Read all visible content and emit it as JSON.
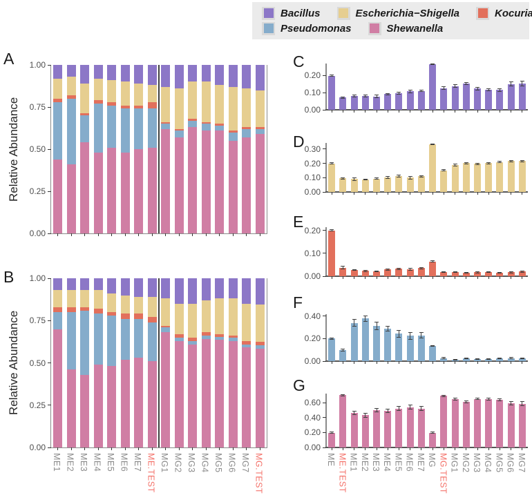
{
  "legend": {
    "rows": [
      [
        {
          "id": "bacillus",
          "label": "Bacillus",
          "color": "#8C77C7"
        },
        {
          "id": "escherichia",
          "label": "Escherichia−Shigella",
          "color": "#E6CE90"
        },
        {
          "id": "kocuria",
          "label": "Kocuria",
          "color": "#E2705C"
        }
      ],
      [
        {
          "id": "pseudomonas",
          "label": "Pseudomonas",
          "color": "#85ACCB"
        },
        {
          "id": "shewanella",
          "label": "Shewanella",
          "color": "#D07EA4"
        }
      ]
    ]
  },
  "x_axis": {
    "left_labels": [
      "ME1",
      "ME2",
      "ME3",
      "ME4",
      "ME5",
      "ME6",
      "ME7",
      "ME.TEST",
      "MG1",
      "MG2",
      "MG3",
      "MG4",
      "MG5",
      "MG6",
      "MG7",
      "MG.TEST"
    ],
    "right_labels": [
      "ME",
      "ME.TEST",
      "ME1",
      "ME2",
      "ME3",
      "ME4",
      "ME5",
      "ME6",
      "ME7",
      "MG",
      "MG.TEST",
      "MG1",
      "MG2",
      "MG3",
      "MG4",
      "MG5",
      "MG6",
      "MG7"
    ],
    "highlighted": [
      "ME.TEST",
      "MG.TEST"
    ],
    "highlight_color": "#F4736B",
    "normal_color": "#8C8C8C"
  },
  "chart_data": [
    {
      "id": "A",
      "letter": "A",
      "type": "stacked-bar",
      "ylabel": "Relative Abundance",
      "ylim": [
        0,
        1
      ],
      "ytick_values": [
        1.0,
        0.75,
        0.5,
        0.25,
        0.0
      ],
      "ytick_labels": [
        "1.00",
        "0.75",
        "0.50",
        "0.25",
        "0.00"
      ],
      "categories": [
        "ME1",
        "ME2",
        "ME3",
        "ME4",
        "ME5",
        "ME6",
        "ME7",
        "ME.TEST",
        "MG1",
        "MG2",
        "MG3",
        "MG4",
        "MG5",
        "MG6",
        "MG7",
        "MG.TEST"
      ],
      "series": [
        {
          "name": "Shewanella",
          "color": "#D07EA4",
          "values": [
            0.44,
            0.41,
            0.54,
            0.48,
            0.51,
            0.48,
            0.5,
            0.51,
            0.62,
            0.57,
            0.63,
            0.61,
            0.61,
            0.55,
            0.57,
            0.59
          ]
        },
        {
          "name": "Pseudomonas",
          "color": "#85ACCB",
          "values": [
            0.34,
            0.39,
            0.16,
            0.29,
            0.25,
            0.26,
            0.24,
            0.23,
            0.03,
            0.04,
            0.04,
            0.04,
            0.03,
            0.05,
            0.05,
            0.03
          ]
        },
        {
          "name": "Kocuria",
          "color": "#E2705C",
          "values": [
            0.02,
            0.02,
            0.015,
            0.02,
            0.02,
            0.02,
            0.02,
            0.04,
            0.01,
            0.01,
            0.01,
            0.01,
            0.01,
            0.01,
            0.01,
            0.01
          ]
        },
        {
          "name": "Escherichia−Shigella",
          "color": "#E6CE90",
          "values": [
            0.12,
            0.11,
            0.175,
            0.13,
            0.13,
            0.14,
            0.13,
            0.1,
            0.21,
            0.24,
            0.22,
            0.24,
            0.23,
            0.26,
            0.23,
            0.22
          ]
        },
        {
          "name": "Bacillus",
          "color": "#8C77C7",
          "values": [
            0.08,
            0.07,
            0.11,
            0.08,
            0.09,
            0.1,
            0.11,
            0.12,
            0.13,
            0.14,
            0.1,
            0.1,
            0.12,
            0.13,
            0.14,
            0.15
          ]
        }
      ]
    },
    {
      "id": "B",
      "letter": "B",
      "type": "stacked-bar",
      "ylabel": "Relative Abundance",
      "ylim": [
        0,
        1
      ],
      "ytick_values": [
        1.0,
        0.75,
        0.5,
        0.25,
        0.0
      ],
      "ytick_labels": [
        "1.00",
        "0.75",
        "0.50",
        "0.25",
        "0.00"
      ],
      "categories": [
        "ME1",
        "ME2",
        "ME3",
        "ME4",
        "ME5",
        "ME6",
        "ME7",
        "ME.TEST",
        "MG1",
        "MG2",
        "MG3",
        "MG4",
        "MG5",
        "MG6",
        "MG7",
        "MG.TEST"
      ],
      "series": [
        {
          "name": "Shewanella",
          "color": "#D07EA4",
          "values": [
            0.7,
            0.46,
            0.43,
            0.49,
            0.48,
            0.52,
            0.53,
            0.51,
            0.68,
            0.63,
            0.61,
            0.64,
            0.635,
            0.63,
            0.59,
            0.585
          ]
        },
        {
          "name": "Pseudomonas",
          "color": "#85ACCB",
          "values": [
            0.1,
            0.34,
            0.38,
            0.3,
            0.3,
            0.24,
            0.23,
            0.23,
            0.03,
            0.02,
            0.02,
            0.02,
            0.02,
            0.02,
            0.02,
            0.02
          ]
        },
        {
          "name": "Kocuria",
          "color": "#E2705C",
          "values": [
            0.03,
            0.03,
            0.02,
            0.03,
            0.02,
            0.03,
            0.03,
            0.03,
            0.01,
            0.02,
            0.02,
            0.02,
            0.015,
            0.01,
            0.02,
            0.02
          ]
        },
        {
          "name": "Escherichia−Shigella",
          "color": "#E6CE90",
          "values": [
            0.1,
            0.1,
            0.1,
            0.11,
            0.11,
            0.11,
            0.1,
            0.12,
            0.16,
            0.18,
            0.2,
            0.19,
            0.21,
            0.22,
            0.22,
            0.22
          ]
        },
        {
          "name": "Bacillus",
          "color": "#8C77C7",
          "values": [
            0.07,
            0.07,
            0.07,
            0.07,
            0.09,
            0.1,
            0.11,
            0.11,
            0.12,
            0.15,
            0.15,
            0.13,
            0.12,
            0.12,
            0.15,
            0.155
          ]
        }
      ]
    },
    {
      "id": "C",
      "letter": "C",
      "type": "bar",
      "taxon": "Bacillus",
      "color": "#8C77C7",
      "ylim": [
        0,
        0.268
      ],
      "ytick_values": [
        0.0,
        0.1,
        0.2
      ],
      "ytick_labels": [
        "0.00",
        "0.10",
        "0.20"
      ],
      "categories": [
        "ME",
        "ME.TEST",
        "ME1",
        "ME2",
        "ME3",
        "ME4",
        "ME5",
        "ME6",
        "ME7",
        "MG",
        "MG.TEST",
        "MG1",
        "MG2",
        "MG3",
        "MG4",
        "MG5",
        "MG6",
        "MG7"
      ],
      "values": [
        0.197,
        0.071,
        0.08,
        0.081,
        0.078,
        0.091,
        0.096,
        0.107,
        0.11,
        0.265,
        0.125,
        0.137,
        0.152,
        0.123,
        0.115,
        0.115,
        0.15,
        0.153
      ],
      "errors": [
        0.004,
        0.005,
        0.006,
        0.007,
        0.007,
        0.004,
        0.006,
        0.007,
        0.005,
        0.003,
        0.008,
        0.008,
        0.007,
        0.008,
        0.006,
        0.008,
        0.013,
        0.015
      ]
    },
    {
      "id": "D",
      "letter": "D",
      "type": "bar",
      "taxon": "Escherichia−Shigella",
      "color": "#E6CE90",
      "ylim": [
        0,
        0.343
      ],
      "ytick_values": [
        0.0,
        0.1,
        0.2,
        0.3
      ],
      "ytick_labels": [
        "0.00",
        "0.10",
        "0.20",
        "0.30"
      ],
      "categories": [
        "ME",
        "ME.TEST",
        "ME1",
        "ME2",
        "ME3",
        "ME4",
        "ME5",
        "ME6",
        "ME7",
        "MG",
        "MG.TEST",
        "MG1",
        "MG2",
        "MG3",
        "MG4",
        "MG5",
        "MG6",
        "MG7"
      ],
      "values": [
        0.2,
        0.095,
        0.091,
        0.086,
        0.093,
        0.1,
        0.11,
        0.101,
        0.11,
        0.335,
        0.152,
        0.19,
        0.201,
        0.197,
        0.202,
        0.21,
        0.215,
        0.215
      ],
      "errors": [
        0.004,
        0.004,
        0.009,
        0.003,
        0.004,
        0.008,
        0.006,
        0.01,
        0.004,
        0.003,
        0.006,
        0.007,
        0.004,
        0.005,
        0.005,
        0.006,
        0.007,
        0.006
      ]
    },
    {
      "id": "E",
      "letter": "E",
      "type": "bar",
      "taxon": "Kocuria",
      "color": "#E2705C",
      "ylim": [
        0,
        0.215
      ],
      "ytick_values": [
        0.0,
        0.1,
        0.2
      ],
      "ytick_labels": [
        "0.00",
        "0.10",
        "0.20"
      ],
      "categories": [
        "ME",
        "ME.TEST",
        "ME1",
        "ME2",
        "ME3",
        "ME4",
        "ME5",
        "ME6",
        "ME7",
        "MG",
        "MG.TEST",
        "MG1",
        "MG2",
        "MG3",
        "MG4",
        "MG5",
        "MG6",
        "MG7"
      ],
      "values": [
        0.2,
        0.037,
        0.028,
        0.023,
        0.022,
        0.03,
        0.032,
        0.03,
        0.035,
        0.065,
        0.018,
        0.018,
        0.016,
        0.017,
        0.019,
        0.016,
        0.017,
        0.02
      ],
      "errors": [
        0.003,
        0.006,
        0.002,
        0.002,
        0.002,
        0.003,
        0.003,
        0.005,
        0.003,
        0.003,
        0.002,
        0.002,
        0.002,
        0.002,
        0.002,
        0.002,
        0.002,
        0.002
      ]
    },
    {
      "id": "F",
      "letter": "F",
      "type": "bar",
      "taxon": "Pseudomonas",
      "color": "#85ACCB",
      "ylim": [
        0,
        0.418
      ],
      "ytick_values": [
        0.0,
        0.2,
        0.4
      ],
      "ytick_labels": [
        "0.00",
        "0.20",
        "0.40"
      ],
      "categories": [
        "ME",
        "ME.TEST",
        "ME1",
        "ME2",
        "ME3",
        "ME4",
        "ME5",
        "ME6",
        "ME7",
        "MG",
        "MG.TEST",
        "MG1",
        "MG2",
        "MG3",
        "MG4",
        "MG5",
        "MG6",
        "MG7"
      ],
      "values": [
        0.2,
        0.1,
        0.34,
        0.38,
        0.315,
        0.29,
        0.245,
        0.225,
        0.23,
        0.135,
        0.027,
        0.015,
        0.022,
        0.018,
        0.02,
        0.025,
        0.027,
        0.022
      ],
      "errors": [
        0.006,
        0.008,
        0.03,
        0.025,
        0.035,
        0.02,
        0.03,
        0.03,
        0.025,
        0.005,
        0.004,
        0.003,
        0.003,
        0.003,
        0.003,
        0.004,
        0.004,
        0.003
      ]
    },
    {
      "id": "G",
      "letter": "G",
      "type": "bar",
      "taxon": "Shewanella",
      "color": "#D07EA4",
      "ylim": [
        0,
        0.72
      ],
      "ytick_values": [
        0.0,
        0.2,
        0.4,
        0.6
      ],
      "ytick_labels": [
        "0.00",
        "0.20",
        "0.40",
        "0.60"
      ],
      "categories": [
        "ME",
        "ME.TEST",
        "ME1",
        "ME2",
        "ME3",
        "ME4",
        "ME5",
        "ME6",
        "ME7",
        "MG",
        "MG.TEST",
        "MG1",
        "MG2",
        "MG3",
        "MG4",
        "MG5",
        "MG6",
        "MG7"
      ],
      "values": [
        0.197,
        0.7,
        0.46,
        0.43,
        0.5,
        0.49,
        0.52,
        0.54,
        0.52,
        0.197,
        0.69,
        0.645,
        0.61,
        0.65,
        0.645,
        0.635,
        0.59,
        0.585
      ],
      "errors": [
        0.008,
        0.01,
        0.025,
        0.025,
        0.025,
        0.025,
        0.025,
        0.03,
        0.025,
        0.008,
        0.008,
        0.015,
        0.015,
        0.012,
        0.012,
        0.015,
        0.02,
        0.025
      ]
    }
  ]
}
